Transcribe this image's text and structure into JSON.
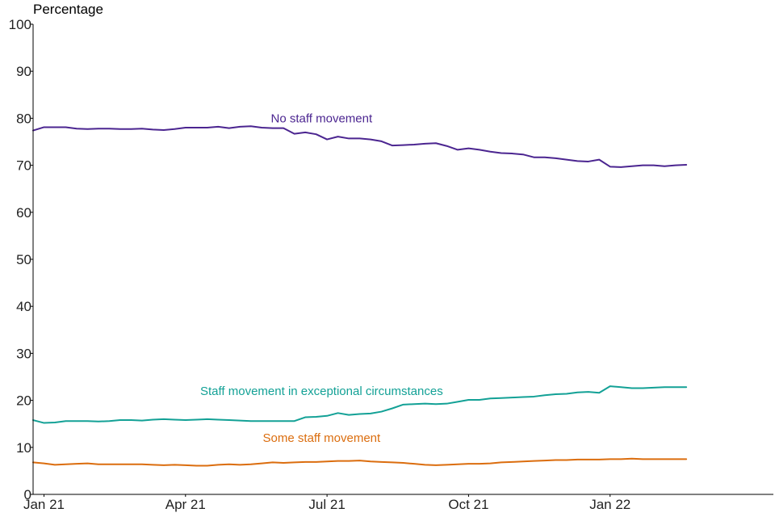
{
  "chart_data": {
    "type": "line",
    "title": "",
    "xlabel": "",
    "ylabel": "Percentage",
    "ylim": [
      0,
      100
    ],
    "yticks": [
      0,
      10,
      20,
      30,
      40,
      50,
      60,
      70,
      80,
      90,
      100
    ],
    "xticks": [
      {
        "label": "Jan 21",
        "week": 1
      },
      {
        "label": "Apr 21",
        "week": 14
      },
      {
        "label": "Jul 21",
        "week": 27
      },
      {
        "label": "Oct 21",
        "week": 40
      },
      {
        "label": "Jan 22",
        "week": 53
      }
    ],
    "xlim": [
      0,
      68
    ],
    "x_unit": "weeks since late Dec 2020",
    "series": [
      {
        "name": "No staff movement",
        "color": "#4b2590",
        "label_anchor_week": 26.5,
        "label_anchor_value": 80,
        "values": [
          77.4,
          78.1,
          78.1,
          78.1,
          77.8,
          77.7,
          77.8,
          77.8,
          77.7,
          77.7,
          77.8,
          77.6,
          77.5,
          77.7,
          78.0,
          78.0,
          78.0,
          78.2,
          77.9,
          78.2,
          78.3,
          78.0,
          77.9,
          77.9,
          76.7,
          77.0,
          76.6,
          75.5,
          76.1,
          75.7,
          75.7,
          75.5,
          75.1,
          74.2,
          74.3,
          74.4,
          74.6,
          74.7,
          74.1,
          73.3,
          73.6,
          73.3,
          72.9,
          72.6,
          72.5,
          72.3,
          71.7,
          71.7,
          71.5,
          71.2,
          70.9,
          70.8,
          71.2,
          69.7,
          69.6,
          69.8,
          70.0,
          70.0,
          69.8,
          70.0,
          70.1
        ],
        "label": "No staff movement"
      },
      {
        "name": "Staff movement in exceptional circumstances",
        "color": "#13a196",
        "label_anchor_week": 26.5,
        "label_anchor_value": 22,
        "values": [
          15.8,
          15.2,
          15.3,
          15.6,
          15.6,
          15.6,
          15.5,
          15.6,
          15.8,
          15.8,
          15.7,
          15.9,
          16.0,
          15.9,
          15.8,
          15.9,
          16.0,
          15.9,
          15.8,
          15.7,
          15.6,
          15.6,
          15.6,
          15.6,
          15.6,
          16.4,
          16.5,
          16.7,
          17.3,
          16.9,
          17.1,
          17.2,
          17.6,
          18.3,
          19.1,
          19.2,
          19.3,
          19.2,
          19.3,
          19.7,
          20.1,
          20.1,
          20.4,
          20.5,
          20.6,
          20.7,
          20.8,
          21.1,
          21.3,
          21.4,
          21.7,
          21.8,
          21.6,
          23.0,
          22.8,
          22.6,
          22.6,
          22.7,
          22.8,
          22.8,
          22.8
        ],
        "label": "Staff movement in exceptional circumstances"
      },
      {
        "name": "Some staff movement",
        "color": "#db6d0e",
        "label_anchor_week": 26.5,
        "label_anchor_value": 12,
        "values": [
          6.8,
          6.6,
          6.3,
          6.4,
          6.5,
          6.6,
          6.4,
          6.4,
          6.4,
          6.4,
          6.4,
          6.3,
          6.2,
          6.3,
          6.2,
          6.1,
          6.1,
          6.3,
          6.4,
          6.3,
          6.4,
          6.6,
          6.8,
          6.7,
          6.8,
          6.9,
          6.9,
          7.0,
          7.1,
          7.1,
          7.2,
          7.0,
          6.9,
          6.8,
          6.7,
          6.5,
          6.3,
          6.2,
          6.3,
          6.4,
          6.5,
          6.5,
          6.6,
          6.8,
          6.9,
          7.0,
          7.1,
          7.2,
          7.3,
          7.3,
          7.4,
          7.4,
          7.4,
          7.5,
          7.5,
          7.6,
          7.5,
          7.5,
          7.5,
          7.5,
          7.5
        ],
        "label": "Some staff movement"
      }
    ]
  }
}
